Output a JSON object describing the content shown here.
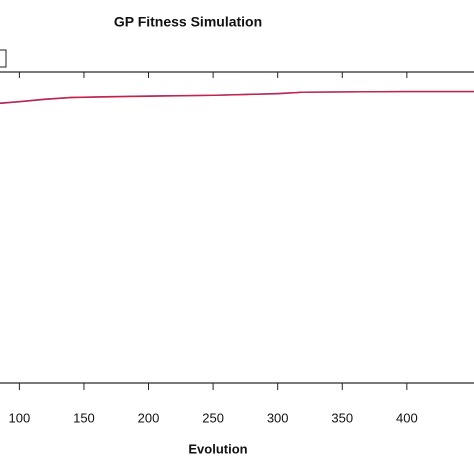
{
  "chart_data": {
    "type": "line",
    "title": "GP Fitness Simulation",
    "x_label": "Evolution",
    "x": [
      85,
      100,
      120,
      140,
      170,
      200,
      250,
      300,
      320,
      350,
      400,
      452
    ],
    "series": [
      {
        "color": "#d02040",
        "values": [
          0.9,
          0.905,
          0.913,
          0.918,
          0.92,
          0.922,
          0.925,
          0.93,
          0.935,
          0.936,
          0.937,
          0.937
        ]
      },
      {
        "color": "#4050d0",
        "values": [
          0.899,
          0.904,
          0.912,
          0.918,
          0.921,
          0.923,
          0.925,
          0.931,
          0.935,
          0.936,
          0.937,
          0.937
        ]
      }
    ],
    "xlim": [
      85,
      452
    ],
    "ylim": [
      0,
      1
    ],
    "xticks": [
      100,
      150,
      200,
      250,
      300,
      350,
      400
    ]
  }
}
